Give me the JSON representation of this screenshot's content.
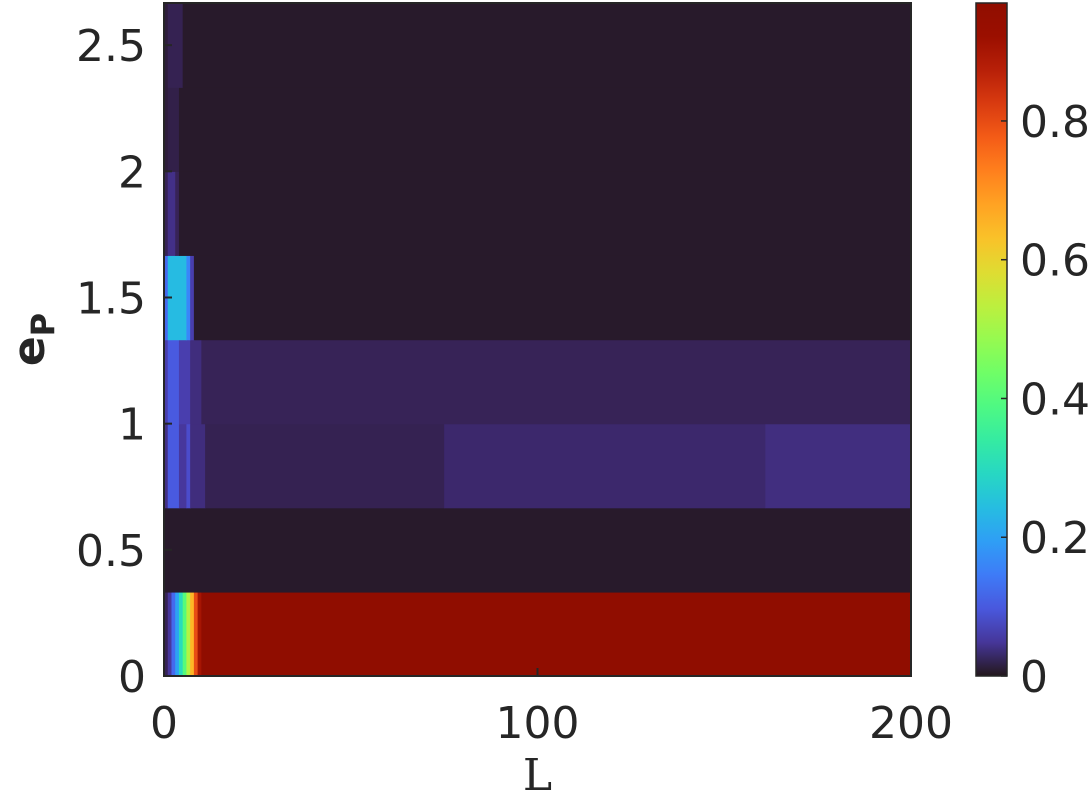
{
  "chart_data": {
    "type": "heatmap",
    "title": "",
    "xlabel": "L",
    "ylabel": {
      "main": "e",
      "subscript": "P"
    },
    "xlim": [
      0,
      200
    ],
    "ylim": [
      0,
      2.667
    ],
    "xticks": [
      "0",
      "100",
      "200"
    ],
    "yticks": [
      "0",
      "0.5",
      "1",
      "1.5",
      "2",
      "2.5"
    ],
    "colorbar": {
      "colormap": "turbo",
      "range": [
        0,
        0.97
      ],
      "ticks": [
        "0",
        "0.2",
        "0.4",
        "0.6",
        "0.8"
      ]
    },
    "rows": [
      {
        "y": [
          0.0,
          0.333
        ],
        "segments": [
          {
            "x": [
              0,
              1
            ],
            "value": 0.02
          },
          {
            "x": [
              1,
              2
            ],
            "value": 0.05
          },
          {
            "x": [
              2,
              3
            ],
            "value": 0.12
          },
          {
            "x": [
              3,
              4
            ],
            "value": 0.2
          },
          {
            "x": [
              4,
              5
            ],
            "value": 0.3
          },
          {
            "x": [
              5,
              6
            ],
            "value": 0.4
          },
          {
            "x": [
              6,
              7
            ],
            "value": 0.52
          },
          {
            "x": [
              7,
              8
            ],
            "value": 0.65
          },
          {
            "x": [
              8,
              9
            ],
            "value": 0.8
          },
          {
            "x": [
              9,
              10
            ],
            "value": 0.9
          },
          {
            "x": [
              10,
              200
            ],
            "value": 0.97
          }
        ]
      },
      {
        "y": [
          0.333,
          0.667
        ],
        "segments": [
          {
            "x": [
              0,
              200
            ],
            "value": 0.005
          }
        ]
      },
      {
        "y": [
          0.667,
          1.0
        ],
        "segments": [
          {
            "x": [
              0,
              1
            ],
            "value": 0.04
          },
          {
            "x": [
              1,
              4
            ],
            "value": 0.1
          },
          {
            "x": [
              4,
              6
            ],
            "value": 0.05
          },
          {
            "x": [
              6,
              7
            ],
            "value": 0.08
          },
          {
            "x": [
              7,
              11
            ],
            "value": 0.035
          },
          {
            "x": [
              11,
              75
            ],
            "value": 0.018
          },
          {
            "x": [
              75,
              161
            ],
            "value": 0.028
          },
          {
            "x": [
              161,
              200
            ],
            "value": 0.036
          }
        ]
      },
      {
        "y": [
          1.0,
          1.333
        ],
        "segments": [
          {
            "x": [
              0,
              1
            ],
            "value": 0.06
          },
          {
            "x": [
              1,
              4
            ],
            "value": 0.1
          },
          {
            "x": [
              4,
              7
            ],
            "value": 0.06
          },
          {
            "x": [
              7,
              10
            ],
            "value": 0.035
          },
          {
            "x": [
              10,
              200
            ],
            "value": 0.02
          }
        ]
      },
      {
        "y": [
          1.333,
          1.667
        ],
        "segments": [
          {
            "x": [
              0,
              1
            ],
            "value": 0.12
          },
          {
            "x": [
              1,
              6
            ],
            "value": 0.24
          },
          {
            "x": [
              6,
              7
            ],
            "value": 0.16
          },
          {
            "x": [
              7,
              8
            ],
            "value": 0.06
          },
          {
            "x": [
              8,
              200
            ],
            "value": 0.005
          }
        ]
      },
      {
        "y": [
          1.667,
          2.0
        ],
        "segments": [
          {
            "x": [
              0,
              1
            ],
            "value": 0.02
          },
          {
            "x": [
              1,
              3
            ],
            "value": 0.04
          },
          {
            "x": [
              3,
              4
            ],
            "value": 0.02
          },
          {
            "x": [
              4,
              200
            ],
            "value": 0.005
          }
        ]
      },
      {
        "y": [
          2.0,
          2.333
        ],
        "segments": [
          {
            "x": [
              0,
              1
            ],
            "value": 0.01
          },
          {
            "x": [
              1,
              4
            ],
            "value": 0.015
          },
          {
            "x": [
              4,
              200
            ],
            "value": 0.005
          }
        ]
      },
      {
        "y": [
          2.333,
          2.667
        ],
        "segments": [
          {
            "x": [
              0,
              1
            ],
            "value": 0.01
          },
          {
            "x": [
              1,
              5
            ],
            "value": 0.018
          },
          {
            "x": [
              5,
              200
            ],
            "value": 0.005
          }
        ]
      }
    ]
  }
}
